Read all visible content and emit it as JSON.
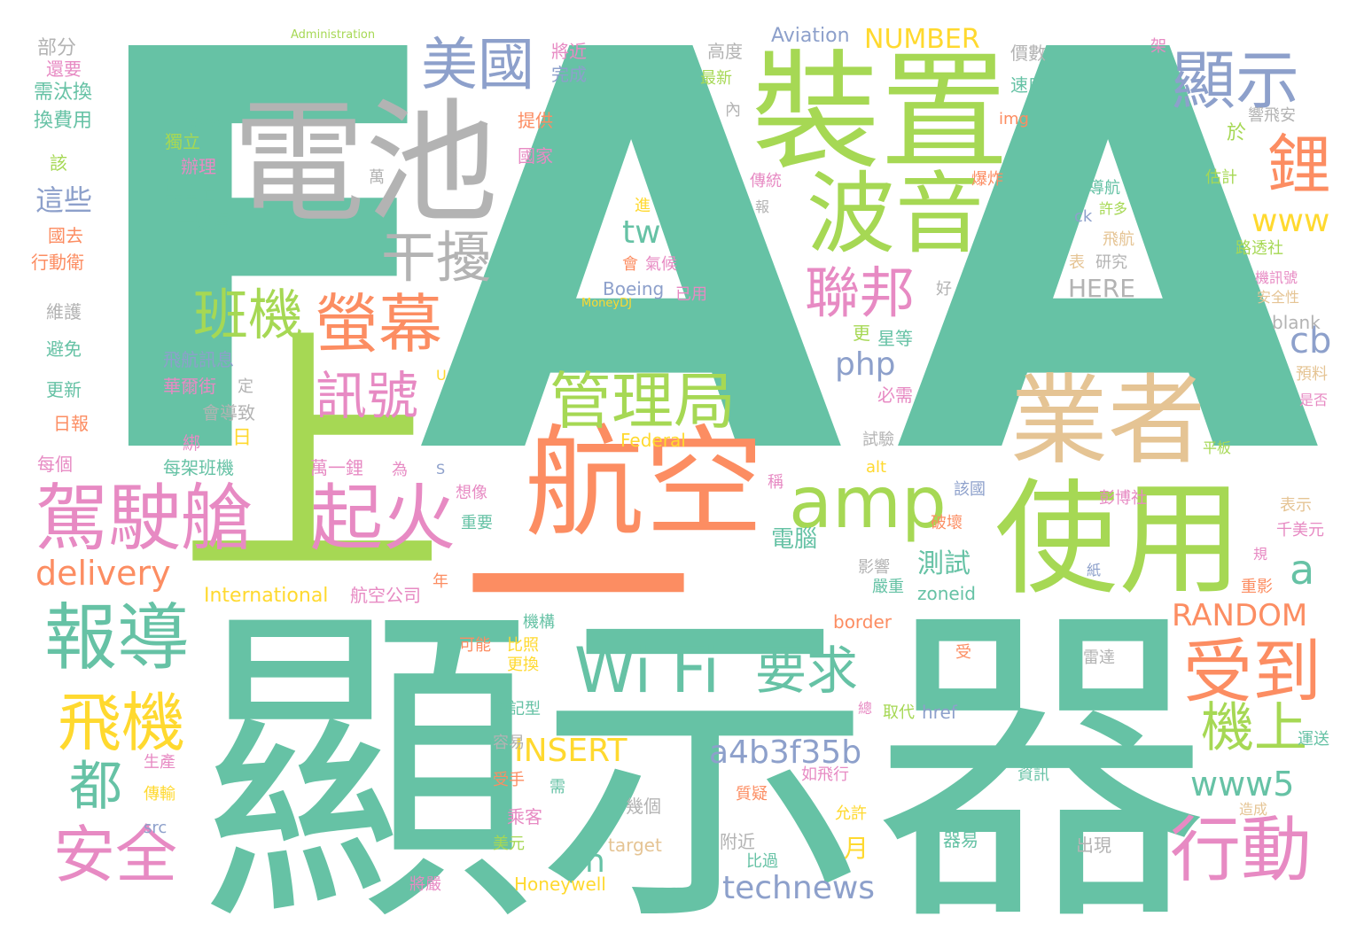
{
  "palette": {
    "teal": "#66c2a5",
    "orange": "#fc8d62",
    "blue": "#8da0cb",
    "pink": "#e78ac3",
    "green": "#a6d854",
    "yellow": "#ffd92f",
    "tan": "#e5c494",
    "gray": "#b3b3b3"
  },
  "words": [
    {
      "text": "F",
      "color": "teal"
    },
    {
      "text": "A",
      "color": "teal"
    },
    {
      "text": "A",
      "color": "teal"
    },
    {
      "text": "顯示器",
      "color": "teal"
    },
    {
      "text": "電池",
      "color": "gray"
    },
    {
      "text": "裝置",
      "color": "green"
    },
    {
      "text": "波音",
      "color": "green"
    },
    {
      "text": "上",
      "color": "green"
    },
    {
      "text": "航空",
      "color": "orange"
    },
    {
      "text": "使用",
      "color": "green"
    },
    {
      "text": "業者",
      "color": "tan"
    },
    {
      "text": "一",
      "color": "orange"
    },
    {
      "text": "駕駛艙",
      "color": "pink"
    },
    {
      "text": "起火",
      "color": "pink"
    },
    {
      "text": "amp",
      "color": "green"
    },
    {
      "text": "管理局",
      "color": "green"
    },
    {
      "text": "Wi Fi",
      "color": "teal"
    },
    {
      "text": "要求",
      "color": "teal"
    },
    {
      "text": "報導",
      "color": "teal"
    },
    {
      "text": "飛機",
      "color": "yellow"
    },
    {
      "text": "都",
      "color": "teal"
    },
    {
      "text": "安全",
      "color": "pink"
    },
    {
      "text": "受到",
      "color": "orange"
    },
    {
      "text": "機上",
      "color": "green"
    },
    {
      "text": "行動",
      "color": "pink"
    },
    {
      "text": "顯示",
      "color": "blue"
    },
    {
      "text": "鋰",
      "color": "orange"
    },
    {
      "text": "美國",
      "color": "blue"
    },
    {
      "text": "螢幕",
      "color": "orange"
    },
    {
      "text": "班機",
      "color": "green"
    },
    {
      "text": "干擾",
      "color": "gray"
    },
    {
      "text": "訊號",
      "color": "pink"
    },
    {
      "text": "聯邦",
      "color": "pink"
    },
    {
      "text": "www",
      "color": "yellow"
    },
    {
      "text": "www5",
      "color": "teal"
    },
    {
      "text": "a4b3f35b",
      "color": "blue"
    },
    {
      "text": "technews",
      "color": "blue"
    },
    {
      "text": "delivery",
      "color": "orange"
    },
    {
      "text": "INSERT",
      "color": "yellow"
    },
    {
      "text": "RANDOM",
      "color": "orange"
    },
    {
      "text": "php",
      "color": "blue"
    },
    {
      "text": "cb",
      "color": "blue"
    },
    {
      "text": "tw",
      "color": "teal"
    },
    {
      "text": "a",
      "color": "teal"
    },
    {
      "text": "n",
      "color": "teal"
    },
    {
      "text": "NUMBER",
      "color": "yellow"
    },
    {
      "text": "Aviation",
      "color": "blue"
    },
    {
      "text": "HERE",
      "color": "gray"
    },
    {
      "text": "Federal",
      "color": "yellow"
    },
    {
      "text": "International",
      "color": "yellow"
    },
    {
      "text": "Honeywell",
      "color": "yellow"
    },
    {
      "text": "Administration",
      "color": "green"
    },
    {
      "text": "Boeing",
      "color": "blue"
    },
    {
      "text": "MoneyDJ",
      "color": "yellow"
    },
    {
      "text": "這些",
      "color": "blue"
    },
    {
      "text": "測試",
      "color": "teal"
    },
    {
      "text": "電腦",
      "color": "teal"
    },
    {
      "text": "航空公司",
      "color": "pink"
    },
    {
      "text": "border",
      "color": "orange"
    },
    {
      "text": "zoneid",
      "color": "teal"
    },
    {
      "text": "href",
      "color": "blue"
    },
    {
      "text": "target",
      "color": "tan"
    },
    {
      "text": "src",
      "color": "blue"
    },
    {
      "text": "alt",
      "color": "yellow"
    },
    {
      "text": "blank",
      "color": "gray"
    },
    {
      "text": "img",
      "color": "orange"
    },
    {
      "text": "avw",
      "color": "teal"
    },
    {
      "text": "ck",
      "color": "blue"
    },
    {
      "text": "部分",
      "color": "gray"
    },
    {
      "text": "還要",
      "color": "pink"
    },
    {
      "text": "需汰換",
      "color": "teal"
    },
    {
      "text": "換費用",
      "color": "teal"
    },
    {
      "text": "該",
      "color": "green"
    },
    {
      "text": "國去",
      "color": "orange"
    },
    {
      "text": "行動衛",
      "color": "orange"
    },
    {
      "text": "維護",
      "color": "gray"
    },
    {
      "text": "避免",
      "color": "teal"
    },
    {
      "text": "更新",
      "color": "teal"
    },
    {
      "text": "日報",
      "color": "orange"
    },
    {
      "text": "每個",
      "color": "pink"
    },
    {
      "text": "將近",
      "color": "pink"
    },
    {
      "text": "完成",
      "color": "blue"
    },
    {
      "text": "提供",
      "color": "orange"
    },
    {
      "text": "國家",
      "color": "pink"
    },
    {
      "text": "獨立",
      "color": "green"
    },
    {
      "text": "辦理",
      "color": "pink"
    },
    {
      "text": "黑畫面",
      "color": "teal"
    },
    {
      "text": "一疑慮",
      "color": "teal"
    },
    {
      "text": "飛航訊息",
      "color": "blue"
    },
    {
      "text": "華爾街",
      "color": "pink"
    },
    {
      "text": "每架班機",
      "color": "teal"
    },
    {
      "text": "萬一鋰",
      "color": "pink"
    },
    {
      "text": "會導致",
      "color": "gray"
    },
    {
      "text": "綁",
      "color": "pink"
    },
    {
      "text": "日",
      "color": "yellow"
    },
    {
      "text": "定",
      "color": "gray"
    },
    {
      "text": "更",
      "color": "green"
    },
    {
      "text": "星等",
      "color": "teal"
    },
    {
      "text": "必需",
      "color": "pink"
    },
    {
      "text": "試驗",
      "color": "gray"
    },
    {
      "text": "高度",
      "color": "gray"
    },
    {
      "text": "最新",
      "color": "green"
    },
    {
      "text": "內",
      "color": "gray"
    },
    {
      "text": "價數",
      "color": "gray"
    },
    {
      "text": "速度",
      "color": "teal"
    },
    {
      "text": "響飛安",
      "color": "gray"
    },
    {
      "text": "架",
      "color": "pink"
    },
    {
      "text": "傳統",
      "color": "pink"
    },
    {
      "text": "爆炸",
      "color": "orange"
    },
    {
      "text": "於",
      "color": "green"
    },
    {
      "text": "估計",
      "color": "green"
    },
    {
      "text": "導航",
      "color": "teal"
    },
    {
      "text": "許多",
      "color": "green"
    },
    {
      "text": "飛航",
      "color": "tan"
    },
    {
      "text": "研究",
      "color": "gray"
    },
    {
      "text": "表",
      "color": "tan"
    },
    {
      "text": "路透社",
      "color": "green"
    },
    {
      "text": "機訊號",
      "color": "pink"
    },
    {
      "text": "安全性",
      "color": "tan"
    },
    {
      "text": "預料",
      "color": "tan"
    },
    {
      "text": "是否",
      "color": "pink"
    },
    {
      "text": "平板",
      "color": "green"
    },
    {
      "text": "彭博社",
      "color": "pink"
    },
    {
      "text": "表示",
      "color": "tan"
    },
    {
      "text": "千美元",
      "color": "pink"
    },
    {
      "text": "重影",
      "color": "orange"
    },
    {
      "text": "規",
      "color": "pink"
    },
    {
      "text": "紙",
      "color": "blue"
    },
    {
      "text": "嚴重",
      "color": "teal"
    },
    {
      "text": "雷達",
      "color": "gray"
    },
    {
      "text": "受",
      "color": "orange"
    },
    {
      "text": "運送",
      "color": "teal"
    },
    {
      "text": "造成",
      "color": "tan"
    },
    {
      "text": "出現",
      "color": "gray"
    },
    {
      "text": "器易",
      "color": "teal"
    },
    {
      "text": "資訊",
      "color": "teal"
    },
    {
      "text": "允許",
      "color": "yellow"
    },
    {
      "text": "如飛行",
      "color": "pink"
    },
    {
      "text": "質疑",
      "color": "orange"
    },
    {
      "text": "總",
      "color": "pink"
    },
    {
      "text": "取代",
      "color": "green"
    },
    {
      "text": "附近",
      "color": "gray"
    },
    {
      "text": "比過",
      "color": "teal"
    },
    {
      "text": "月",
      "color": "yellow"
    },
    {
      "text": "幾個",
      "color": "gray"
    },
    {
      "text": "會",
      "color": "orange"
    },
    {
      "text": "氣候",
      "color": "pink"
    },
    {
      "text": "已用",
      "color": "pink"
    },
    {
      "text": "進",
      "color": "yellow"
    },
    {
      "text": "報",
      "color": "gray"
    },
    {
      "text": "好",
      "color": "gray"
    },
    {
      "text": "萬",
      "color": "gray"
    },
    {
      "text": "為",
      "color": "pink"
    },
    {
      "text": "年",
      "color": "orange"
    },
    {
      "text": "重要",
      "color": "teal"
    },
    {
      "text": "想像",
      "color": "pink"
    },
    {
      "text": "破壞",
      "color": "orange"
    },
    {
      "text": "影響",
      "color": "gray"
    },
    {
      "text": "該國",
      "color": "blue"
    },
    {
      "text": "稱",
      "color": "pink"
    },
    {
      "text": "可能",
      "color": "orange"
    },
    {
      "text": "比照",
      "color": "yellow"
    },
    {
      "text": "更換",
      "color": "yellow"
    },
    {
      "text": "機構",
      "color": "teal"
    },
    {
      "text": "筆記型",
      "color": "teal"
    },
    {
      "text": "容易",
      "color": "gray"
    },
    {
      "text": "受手",
      "color": "orange"
    },
    {
      "text": "需",
      "color": "teal"
    },
    {
      "text": "乘客",
      "color": "pink"
    },
    {
      "text": "美元",
      "color": "green"
    },
    {
      "text": "將嚴",
      "color": "pink"
    },
    {
      "text": "生產",
      "color": "pink"
    },
    {
      "text": "傳輸",
      "color": "yellow"
    },
    {
      "text": "U",
      "color": "yellow"
    },
    {
      "text": "S",
      "color": "blue"
    }
  ]
}
